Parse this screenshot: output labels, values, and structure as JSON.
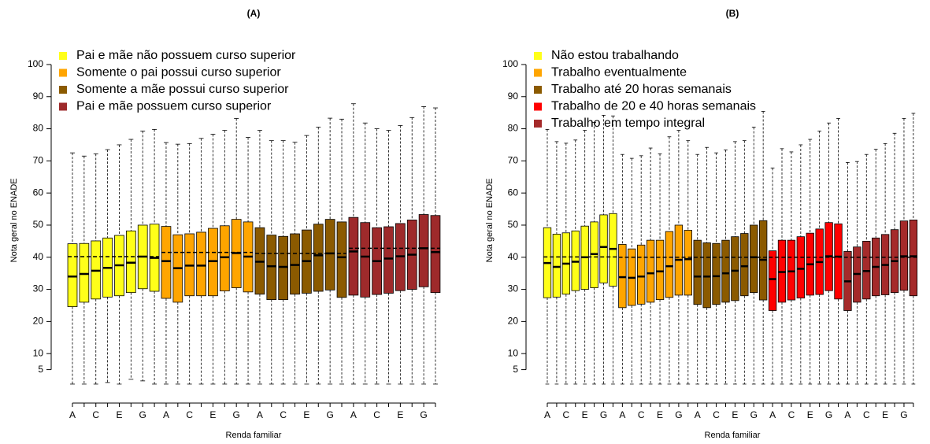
{
  "chart_data": [
    {
      "type": "box",
      "title": "(A)",
      "xlabel": "Renda familiar",
      "ylabel": "Nota geral no ENADE",
      "categories": [
        "A",
        null,
        "C",
        null,
        "E",
        null,
        "G",
        null
      ],
      "ylim": [
        -4,
        107
      ],
      "yticks": [
        5,
        10,
        20,
        30,
        40,
        50,
        60,
        70,
        80,
        90,
        100
      ],
      "legend": "top-left",
      "series": [
        {
          "name": "Pai e mãe não possuem curso superior",
          "color": "#ffff19",
          "low": [
            0.5,
            0.5,
            0.5,
            1,
            0.5,
            2,
            1.5,
            0.5
          ],
          "q1": [
            24.6,
            26,
            27,
            27.6,
            28,
            29,
            30.2,
            29.4
          ],
          "median": [
            34,
            34.8,
            35.8,
            36.7,
            37.5,
            38.3,
            40.2,
            39.8
          ],
          "q3": [
            44.2,
            44.3,
            45.1,
            46,
            46.8,
            48.2,
            50,
            50.3
          ],
          "high": [
            72.5,
            71.5,
            72.2,
            73.5,
            75,
            76.7,
            79.3,
            79.8
          ],
          "mean": 40.2
        },
        {
          "name": "Somente o pai possui curso superior",
          "color": "#ffa500",
          "low": [
            0.5,
            0.5,
            0.5,
            0.5,
            0.5,
            0.5,
            0.5,
            0.5
          ],
          "q1": [
            27.2,
            26,
            28,
            28,
            28,
            29.5,
            30.5,
            29.2
          ],
          "median": [
            38.8,
            36.6,
            37.4,
            37.4,
            38.8,
            40,
            41.3,
            40.2
          ],
          "q3": [
            49.6,
            47,
            47.3,
            47.8,
            49,
            49.8,
            51.8,
            51
          ],
          "high": [
            75.7,
            75.2,
            75.4,
            77,
            78.3,
            79.5,
            83.2,
            77.3
          ],
          "mean": 41.5
        },
        {
          "name": "Somente a mãe possui curso superior",
          "color": "#8b5a00",
          "low": [
            0.5,
            0.5,
            0.5,
            0.5,
            0.5,
            0.5,
            0.5,
            0.5
          ],
          "q1": [
            28.5,
            26.8,
            26.8,
            28.5,
            28.8,
            29.4,
            29.8,
            27.5
          ],
          "median": [
            38.6,
            37.2,
            37,
            37.6,
            38.8,
            40.6,
            41.2,
            40
          ],
          "q3": [
            49.2,
            46.9,
            46.5,
            47.3,
            48.5,
            50.3,
            51.8,
            51
          ],
          "high": [
            79.5,
            76.3,
            76.3,
            75.8,
            77.9,
            80.5,
            83.3,
            83
          ],
          "mean": 41.2
        },
        {
          "name": "Pai e mãe possuem curso superior",
          "color": "#9e2a2b",
          "low": [
            0.5,
            0.5,
            0.5,
            0.5,
            0.5,
            0.5,
            0.5,
            0.5
          ],
          "q1": [
            28.2,
            27.6,
            28.4,
            28.8,
            29.6,
            30,
            30.8,
            29
          ],
          "median": [
            41.8,
            40.2,
            38.8,
            39.6,
            40.3,
            40.8,
            42.8,
            41.6
          ],
          "q3": [
            52.4,
            50.8,
            49.2,
            49.5,
            50.5,
            51.6,
            53.3,
            53
          ],
          "high": [
            87.8,
            81.8,
            80,
            79.5,
            81,
            83.5,
            86.9,
            86.5
          ],
          "mean": 42.8
        }
      ]
    },
    {
      "type": "box",
      "title": "(B)",
      "xlabel": "Renda familiar",
      "ylabel": "Nota geral no ENADE",
      "categories": [
        "A",
        null,
        "C",
        null,
        "E",
        null,
        "G",
        null
      ],
      "ylim": [
        -4,
        107
      ],
      "yticks": [
        5,
        10,
        20,
        30,
        40,
        50,
        60,
        70,
        80,
        90,
        100
      ],
      "legend": "top-left",
      "series": [
        {
          "name": "Não estou trabalhando",
          "color": "#ffff19",
          "low": [
            0.5,
            0.5,
            0.5,
            0.5,
            0.5,
            0.5,
            0.5,
            0.5
          ],
          "q1": [
            27.4,
            27.6,
            28.5,
            29.6,
            30,
            30.5,
            32,
            31
          ],
          "median": [
            38.2,
            37,
            38,
            38.6,
            40,
            41,
            43.2,
            42.6
          ],
          "q3": [
            49.2,
            47.2,
            47.6,
            48.2,
            49.7,
            51,
            53.2,
            53.6
          ],
          "high": [
            79.8,
            76,
            75.5,
            76.5,
            79.5,
            82,
            84.2,
            84
          ],
          "mean": 40.1
        },
        {
          "name": "Trabalho eventualmente",
          "color": "#ffa500",
          "low": [
            0.5,
            0.5,
            0.5,
            0.5,
            0.5,
            0.5,
            0.5,
            0.5
          ],
          "q1": [
            24.3,
            25,
            25.4,
            26,
            26.8,
            27.5,
            28.2,
            28.2
          ],
          "median": [
            33.8,
            33.6,
            34,
            35,
            35.6,
            37.2,
            39.2,
            39.4
          ],
          "q3": [
            44,
            42.6,
            43.8,
            45.3,
            45.3,
            48,
            50,
            48.4
          ],
          "high": [
            72,
            70.8,
            71.6,
            74,
            72.2,
            77.5,
            79.5,
            76.3
          ],
          "mean": 40
        },
        {
          "name": "Trabalho até 20 horas semanais",
          "color": "#8b5a00",
          "low": [
            0.5,
            0.5,
            0.5,
            0.5,
            0.5,
            0.5,
            0.5,
            0.5
          ],
          "q1": [
            25.3,
            24.3,
            25.3,
            26,
            26.5,
            28,
            29,
            26.7
          ],
          "median": [
            34,
            34,
            34.1,
            35,
            35.8,
            37.2,
            40,
            39.2
          ],
          "q3": [
            45.3,
            44.5,
            44.3,
            45.3,
            46.4,
            47.4,
            50,
            51.4
          ],
          "high": [
            72,
            74.2,
            72.5,
            73.4,
            76,
            76.3,
            80.5,
            85.4
          ],
          "mean": 40
        },
        {
          "name": "Trabalho de 20 e 40 horas semanais",
          "color": "#ff0000",
          "low": [
            0.5,
            0.5,
            0.5,
            0.5,
            0.5,
            0.5,
            0.5,
            0.5
          ],
          "q1": [
            23.4,
            26,
            26.7,
            27.3,
            28.2,
            28.4,
            29.6,
            27
          ],
          "median": [
            33.2,
            35.4,
            35.6,
            36.4,
            37.8,
            38.5,
            40.3,
            40.2
          ],
          "q3": [
            42,
            45.3,
            45.3,
            46.4,
            47.5,
            48.8,
            50.8,
            50.4
          ],
          "high": [
            67.8,
            73.8,
            72.8,
            75,
            76.7,
            79.3,
            81.8,
            83.2
          ],
          "mean": 40
        },
        {
          "name": "Trabalho em tempo integral",
          "color": "#a52a2a",
          "low": [
            0.5,
            0.5,
            0.5,
            0.5,
            0.5,
            0.5,
            0.5,
            0.5
          ],
          "q1": [
            23.4,
            26,
            27,
            28,
            28.3,
            29,
            29.7,
            28
          ],
          "median": [
            32.5,
            34.8,
            35.7,
            37,
            37.6,
            38.8,
            40.3,
            40.3
          ],
          "q3": [
            41.8,
            43.2,
            45,
            46,
            47.1,
            48.6,
            51.3,
            51.6
          ],
          "high": [
            69.5,
            69.8,
            72,
            73.6,
            75.4,
            78.6,
            83.2,
            84.8
          ],
          "mean": 40
        }
      ]
    }
  ]
}
